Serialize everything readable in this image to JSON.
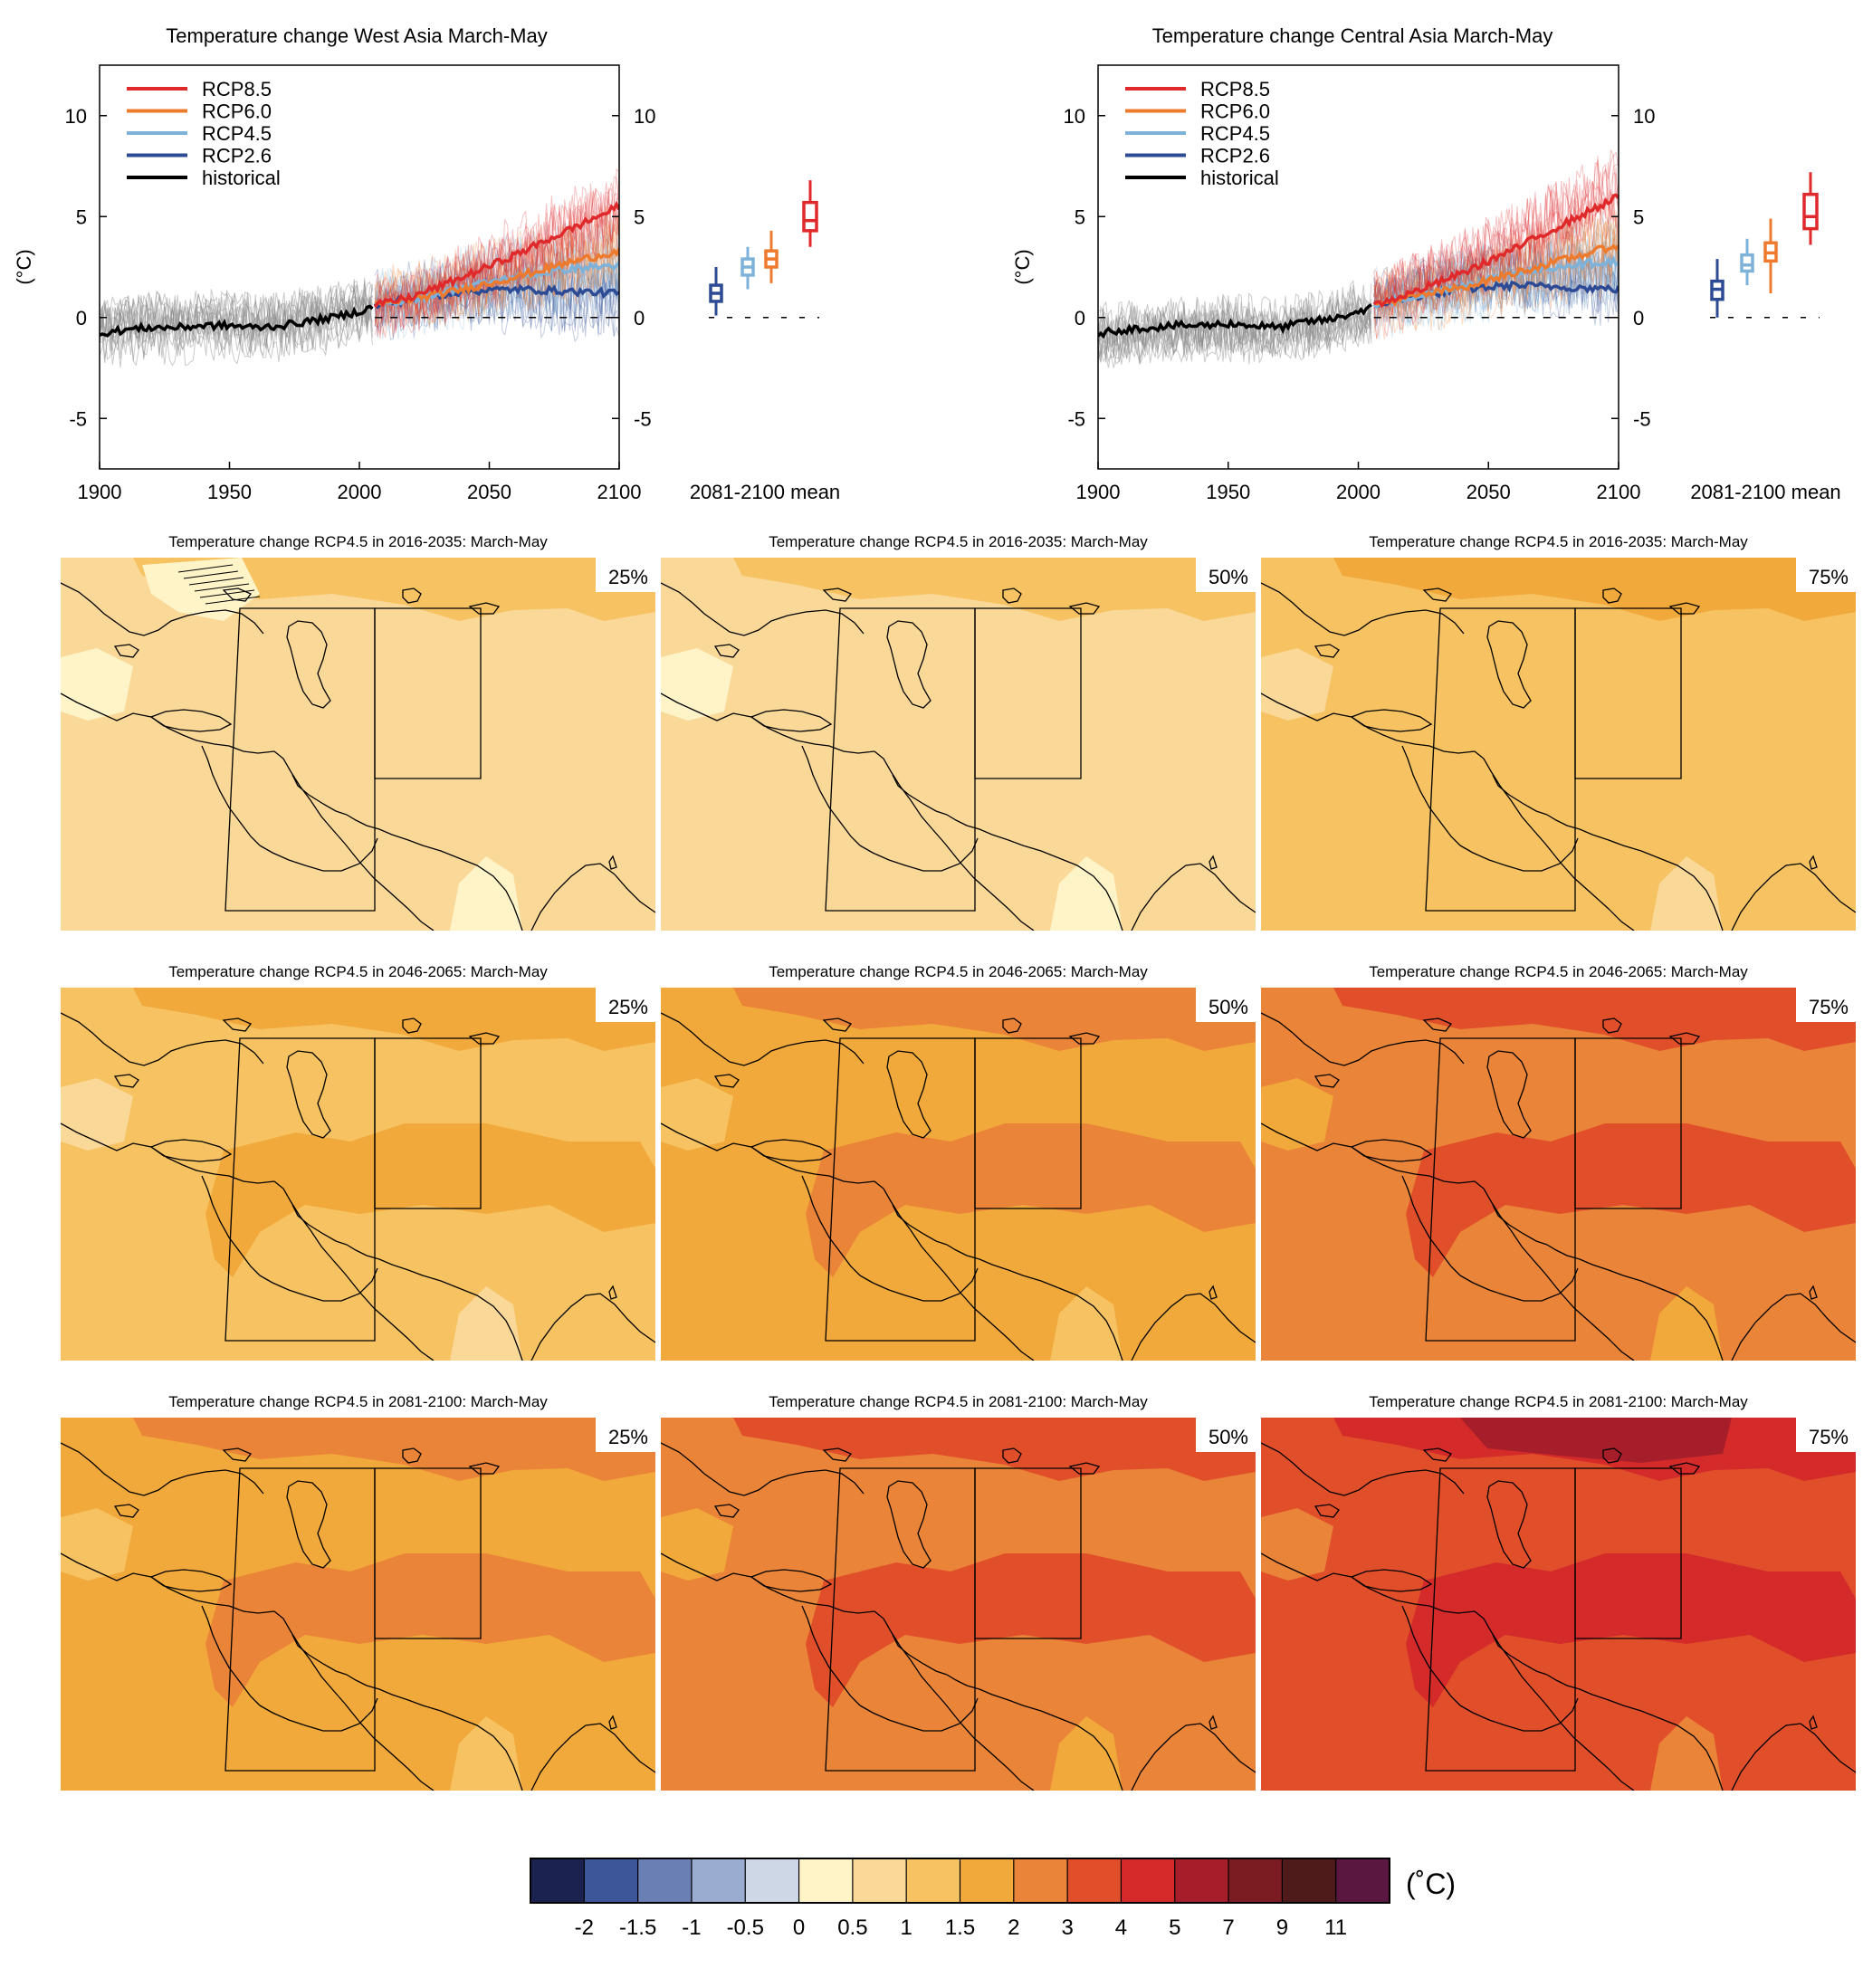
{
  "colors": {
    "rcp85": "#e0292b",
    "rcp60": "#ee7a2e",
    "rcp45": "#7fb2d8",
    "rcp26": "#2c4b94",
    "historical": "#000000",
    "historical_spread": "#8a8a8a"
  },
  "time_series_panels": [
    {
      "title": "Temperature change West Asia March-May",
      "ylabel": "(°C)",
      "box_xlabel": "2081-2100 mean",
      "xticks": [
        "1900",
        "1950",
        "2000",
        "2050",
        "2100"
      ],
      "yticks": [
        "-5",
        "0",
        "5",
        "10"
      ],
      "legend": [
        "RCP8.5",
        "RCP6.0",
        "RCP4.5",
        "RCP2.6",
        "historical"
      ]
    },
    {
      "title": "Temperature change Central Asia March-May",
      "ylabel": "(°C)",
      "box_xlabel": "2081-2100 mean",
      "xticks": [
        "1900",
        "1950",
        "2000",
        "2050",
        "2100"
      ],
      "yticks": [
        "-5",
        "0",
        "5",
        "10"
      ],
      "legend": [
        "RCP8.5",
        "RCP6.0",
        "RCP4.5",
        "RCP2.6",
        "historical"
      ]
    }
  ],
  "chart_data": [
    {
      "type": "line",
      "title": "Temperature change West Asia March-May",
      "ylabel": "(°C)",
      "xlim": [
        1900,
        2100
      ],
      "ylim": [
        -7.5,
        12.5
      ],
      "grid": false,
      "legend_position": "top-left",
      "series": [
        {
          "name": "historical",
          "x": [
            1900,
            1910,
            1920,
            1930,
            1940,
            1950,
            1960,
            1970,
            1980,
            1990,
            2000,
            2005
          ],
          "values": [
            -0.8,
            -0.6,
            -0.5,
            -0.5,
            -0.4,
            -0.4,
            -0.5,
            -0.4,
            -0.2,
            0.0,
            0.3,
            0.5
          ]
        },
        {
          "name": "RCP2.6",
          "x": [
            2006,
            2020,
            2040,
            2060,
            2080,
            2100
          ],
          "values": [
            0.6,
            0.9,
            1.3,
            1.4,
            1.3,
            1.2
          ]
        },
        {
          "name": "RCP4.5",
          "x": [
            2006,
            2020,
            2040,
            2060,
            2080,
            2100
          ],
          "values": [
            0.6,
            0.9,
            1.5,
            2.0,
            2.4,
            2.6
          ]
        },
        {
          "name": "RCP6.0",
          "x": [
            2006,
            2020,
            2040,
            2060,
            2080,
            2100
          ],
          "values": [
            0.6,
            0.9,
            1.4,
            2.0,
            2.7,
            3.3
          ]
        },
        {
          "name": "RCP8.5",
          "x": [
            2006,
            2020,
            2040,
            2060,
            2080,
            2100
          ],
          "values": [
            0.6,
            1.0,
            2.0,
            3.1,
            4.3,
            5.5
          ]
        }
      ],
      "box_panel": {
        "xlabel": "2081-2100 mean",
        "boxes": [
          {
            "name": "RCP2.6",
            "min": 0.1,
            "q1": 0.8,
            "median": 1.2,
            "q3": 1.6,
            "max": 2.5
          },
          {
            "name": "RCP4.5",
            "min": 1.4,
            "q1": 2.1,
            "median": 2.5,
            "q3": 2.9,
            "max": 3.5
          },
          {
            "name": "RCP6.0",
            "min": 1.7,
            "q1": 2.5,
            "median": 2.9,
            "q3": 3.3,
            "max": 4.3
          },
          {
            "name": "RCP8.5",
            "min": 3.5,
            "q1": 4.3,
            "median": 4.8,
            "q3": 5.7,
            "max": 6.8
          }
        ]
      }
    },
    {
      "type": "line",
      "title": "Temperature change Central Asia March-May",
      "ylabel": "(°C)",
      "xlim": [
        1900,
        2100
      ],
      "ylim": [
        -7.5,
        12.5
      ],
      "grid": false,
      "legend_position": "top-left",
      "series": [
        {
          "name": "historical",
          "x": [
            1900,
            1910,
            1920,
            1930,
            1940,
            1950,
            1960,
            1970,
            1980,
            1990,
            2000,
            2005
          ],
          "values": [
            -0.8,
            -0.6,
            -0.5,
            -0.4,
            -0.4,
            -0.3,
            -0.4,
            -0.5,
            -0.2,
            -0.1,
            0.3,
            0.5
          ]
        },
        {
          "name": "RCP2.6",
          "x": [
            2006,
            2020,
            2040,
            2060,
            2080,
            2100
          ],
          "values": [
            0.6,
            1.0,
            1.4,
            1.6,
            1.5,
            1.4
          ]
        },
        {
          "name": "RCP4.5",
          "x": [
            2006,
            2020,
            2040,
            2060,
            2080,
            2100
          ],
          "values": [
            0.6,
            1.0,
            1.6,
            2.2,
            2.6,
            2.8
          ]
        },
        {
          "name": "RCP6.0",
          "x": [
            2006,
            2020,
            2040,
            2060,
            2080,
            2100
          ],
          "values": [
            0.6,
            1.0,
            1.5,
            2.2,
            2.9,
            3.6
          ]
        },
        {
          "name": "RCP8.5",
          "x": [
            2006,
            2020,
            2040,
            2060,
            2080,
            2100
          ],
          "values": [
            0.6,
            1.2,
            2.2,
            3.4,
            4.7,
            6.0
          ]
        }
      ],
      "box_panel": {
        "xlabel": "2081-2100 mean",
        "boxes": [
          {
            "name": "RCP2.6",
            "min": 0.0,
            "q1": 0.9,
            "median": 1.4,
            "q3": 1.8,
            "max": 2.9
          },
          {
            "name": "RCP4.5",
            "min": 1.6,
            "q1": 2.3,
            "median": 2.6,
            "q3": 3.1,
            "max": 3.9
          },
          {
            "name": "RCP6.0",
            "min": 1.2,
            "q1": 2.8,
            "median": 3.2,
            "q3": 3.7,
            "max": 4.9
          },
          {
            "name": "RCP8.5",
            "min": 3.6,
            "q1": 4.4,
            "median": 5.0,
            "q3": 6.1,
            "max": 7.2
          }
        ]
      }
    },
    {
      "type": "heatmap",
      "map_titles": [
        "Temperature change RCP4.5 in 2016-2035: March-May",
        "Temperature change RCP4.5 in 2046-2065: March-May",
        "Temperature change RCP4.5 in 2081-2100: March-May"
      ],
      "percentiles": [
        "25%",
        "50%",
        "75%"
      ],
      "dominant_level_index": [
        [
          6,
          6,
          7
        ],
        [
          7,
          8,
          9
        ],
        [
          8,
          9,
          10
        ]
      ],
      "colorbar": {
        "colors": [
          "#1c2250",
          "#3d5699",
          "#6a7fb3",
          "#9aadd0",
          "#cdd7e6",
          "#fff4c8",
          "#fad898",
          "#f6c262",
          "#f2a93b",
          "#ea8438",
          "#e04f2a",
          "#d42a2a",
          "#a61e2a",
          "#7a1c21",
          "#4f1a1a",
          "#5a1840"
        ],
        "labels": [
          "-2",
          "-1.5",
          "-1",
          "-0.5",
          "0",
          "0.5",
          "1",
          "1.5",
          "2",
          "3",
          "4",
          "5",
          "7",
          "9",
          "11"
        ],
        "unit": "(˚C)"
      }
    }
  ]
}
